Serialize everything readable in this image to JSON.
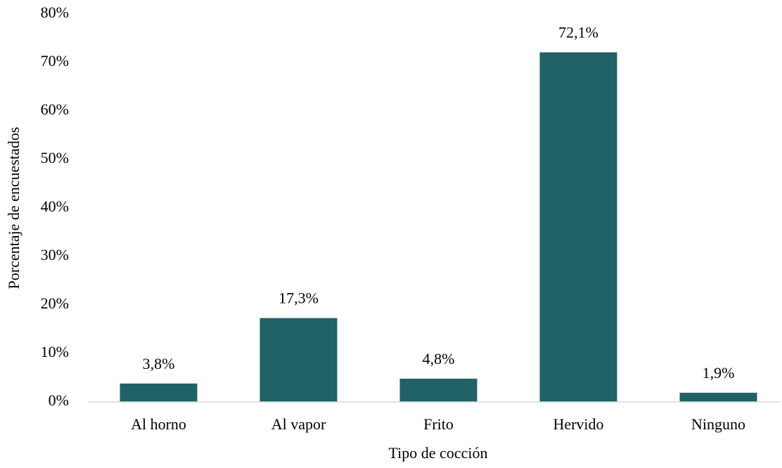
{
  "chart_data": {
    "type": "bar",
    "categories": [
      "Al horno",
      "Al vapor",
      "Frito",
      "Hervido",
      "Ninguno"
    ],
    "values": [
      3.8,
      17.3,
      4.8,
      72.1,
      1.9
    ],
    "value_labels": [
      "3,8%",
      "17,3%",
      "4,8%",
      "72,1%",
      "1,9%"
    ],
    "color": "#216266",
    "ylim": [
      0,
      80
    ],
    "yticks": [
      {
        "value": 0,
        "label": "0%"
      },
      {
        "value": 10,
        "label": "10%"
      },
      {
        "value": 20,
        "label": "20%"
      },
      {
        "value": 30,
        "label": "30%"
      },
      {
        "value": 40,
        "label": "40%"
      },
      {
        "value": 50,
        "label": "50%"
      },
      {
        "value": 60,
        "label": "60%"
      },
      {
        "value": 70,
        "label": "70%"
      },
      {
        "value": 80,
        "label": "80%"
      }
    ],
    "xlabel": "Tipo de cocción",
    "ylabel": "Porcentaje de encuestados",
    "grid": false
  }
}
